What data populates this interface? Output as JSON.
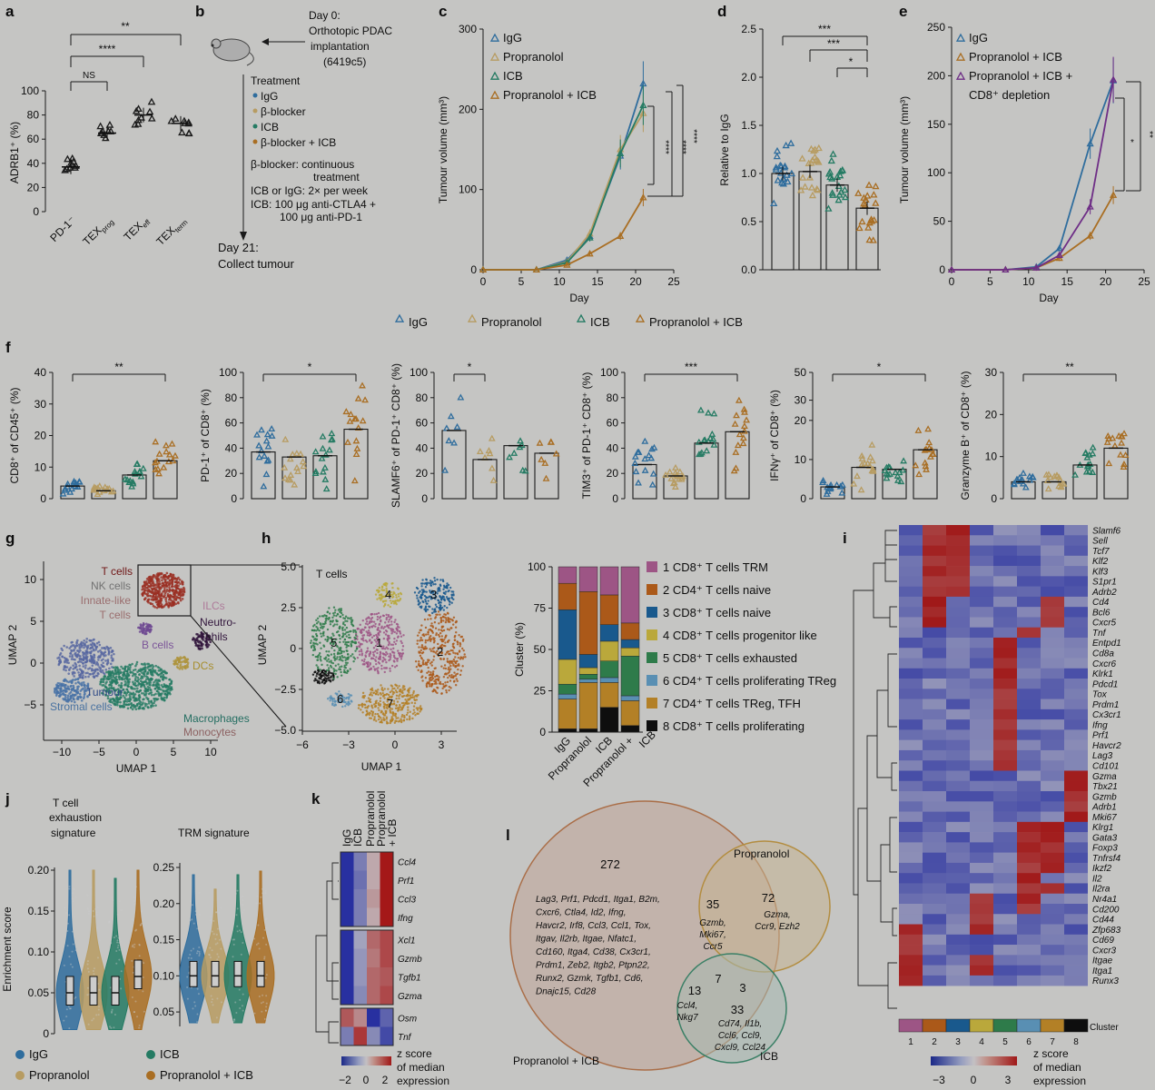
{
  "panel_labels": [
    "a",
    "b",
    "c",
    "d",
    "e",
    "f",
    "g",
    "h",
    "i",
    "j",
    "k",
    "l"
  ],
  "colors": {
    "igg": "#3b88c4",
    "propranolol": "#e5c37a",
    "icb": "#2e9a7c",
    "combo": "#d38a2c",
    "trm": "#c46aa6",
    "cd4naive": "#d66f1f",
    "cd8naive": "#1f6fb0",
    "prog": "#e8d24a",
    "exh": "#3a9a5c",
    "treg": "#6fb3e0",
    "tfh": "#e0a02f",
    "prolif": "#111111"
  },
  "panel_a": {
    "ylabel": "ADRB1⁺ (%)",
    "yticks": [
      "0",
      "20",
      "40",
      "60",
      "80",
      "100"
    ],
    "categories": [
      "PD-1⁻",
      "TEXprog",
      "TEXeff",
      "TEXterm"
    ],
    "sig": [
      "NS",
      "****",
      "**"
    ]
  },
  "panel_b": {
    "day0": "Day 0:",
    "day0_l2": "Orthotopic PDAC",
    "day0_l3": "implantation",
    "day0_l4": "(6419c5)",
    "treat_title": "Treatment",
    "treat_items": [
      "IgG",
      "β-blocker",
      "ICB",
      "β-blocker + ICB"
    ],
    "n1": "β-blocker: continuous",
    "n1b": "treatment",
    "n2": "ICB or IgG: 2× per week",
    "n3": "ICB: 100 μg anti-CTLA4 +",
    "n3b": "100 μg anti-PD-1",
    "day21": "Day 21:",
    "day21b": "Collect tumour"
  },
  "chart_data": [
    {
      "panel": "c",
      "type": "line",
      "xlabel": "Day",
      "ylabel": "Tumour volume (mm³)",
      "xlim": [
        0,
        25
      ],
      "ylim": [
        0,
        300
      ],
      "x": [
        0,
        7,
        11,
        14,
        18,
        21
      ],
      "series": [
        {
          "name": "IgG",
          "values": [
            0,
            0,
            12,
            42,
            142,
            232
          ]
        },
        {
          "name": "Propranolol",
          "values": [
            0,
            0,
            10,
            45,
            150,
            195
          ]
        },
        {
          "name": "ICB",
          "values": [
            0,
            0,
            9,
            40,
            145,
            205
          ]
        },
        {
          "name": "Propranolol + ICB",
          "values": [
            0,
            0,
            6,
            20,
            42,
            90
          ]
        }
      ],
      "annotations": [
        "****",
        "****",
        "****"
      ]
    },
    {
      "panel": "d",
      "type": "bar",
      "ylabel": "Relative to IgG",
      "ylim": [
        0,
        2.5
      ],
      "categories": [
        "IgG",
        "Propranolol",
        "ICB",
        "Propranolol + ICB"
      ],
      "values": [
        1.0,
        1.02,
        0.88,
        0.64
      ],
      "annotations": [
        "***",
        "***",
        "*"
      ]
    },
    {
      "panel": "e",
      "type": "line",
      "xlabel": "Day",
      "ylabel": "Tumour volume (mm³)",
      "xlim": [
        0,
        25
      ],
      "ylim": [
        0,
        250
      ],
      "x": [
        0,
        7,
        11,
        14,
        18,
        21
      ],
      "series": [
        {
          "name": "IgG",
          "values": [
            0,
            0,
            3,
            22,
            130,
            195
          ]
        },
        {
          "name": "Propranolol + ICB",
          "values": [
            0,
            0,
            2,
            12,
            35,
            77
          ]
        },
        {
          "name": "Propranolol + ICB + CD8⁺ depletion",
          "values": [
            0,
            0,
            2,
            15,
            65,
            196
          ]
        }
      ],
      "annotations": [
        "*",
        "**"
      ]
    },
    {
      "panel": "f1",
      "type": "bar",
      "ylabel": "CD8⁺ of CD45⁺ (%)",
      "ylim": [
        0,
        40
      ],
      "values": [
        4,
        2.5,
        7.5,
        12
      ],
      "sig": "**"
    },
    {
      "panel": "f2",
      "type": "bar",
      "ylabel": "PD-1⁺ of CD8⁺ (%)",
      "ylim": [
        0,
        100
      ],
      "values": [
        37,
        33,
        34,
        55
      ],
      "sig": "*"
    },
    {
      "panel": "f3",
      "type": "bar",
      "ylabel": "SLAMF6⁺ of PD-1⁺ CD8⁺ (%)",
      "ylim": [
        0,
        100
      ],
      "values": [
        54,
        31,
        42,
        36
      ],
      "sig": "*"
    },
    {
      "panel": "f4",
      "type": "bar",
      "ylabel": "TIM3⁺ of PD-1⁺ CD8⁺ (%)",
      "ylim": [
        0,
        100
      ],
      "values": [
        27,
        18,
        44,
        53
      ],
      "sig": "***"
    },
    {
      "panel": "f5",
      "type": "bar",
      "ylabel": "IFNγ⁺ of CD8⁺ (%)",
      "ylim": [
        0,
        50
      ],
      "values": [
        3,
        8,
        7.5,
        12.5
      ],
      "sig": "*"
    },
    {
      "panel": "f6",
      "type": "bar",
      "ylabel": "Granzyme B⁺ of CD8⁺ (%)",
      "ylim": [
        0,
        30
      ],
      "values": [
        4,
        4,
        8,
        12
      ],
      "sig": "**"
    },
    {
      "panel": "h-right",
      "type": "bar",
      "ylabel": "Cluster (%)",
      "ylim": [
        0,
        100
      ],
      "categories": [
        "IgG",
        "Propranolol",
        "ICB",
        "Propranolol + ICB"
      ],
      "series": [
        {
          "name": "8 CD8⁺ T cells proliferating",
          "values": [
            2,
            2,
            15,
            4
          ]
        },
        {
          "name": "7 CD4⁺ T cells TReg, TFH",
          "values": [
            18,
            28,
            15,
            15
          ]
        },
        {
          "name": "6 CD4⁺ T cells proliferating TReg",
          "values": [
            3,
            2,
            3,
            3
          ]
        },
        {
          "name": "5 CD8⁺ T cells exhausted",
          "values": [
            6,
            3,
            10,
            24
          ]
        },
        {
          "name": "4 CD8⁺ T cells progenitor like",
          "values": [
            15,
            4,
            12,
            5
          ]
        },
        {
          "name": "3 CD8⁺ T cells naive",
          "values": [
            30,
            8,
            10,
            5
          ]
        },
        {
          "name": "2 CD4⁺ T cells naive",
          "values": [
            16,
            38,
            18,
            10
          ]
        },
        {
          "name": "1 CD8⁺ T cells TRM",
          "values": [
            10,
            15,
            17,
            34
          ]
        }
      ]
    },
    {
      "panel": "j",
      "type": "violin",
      "ylabel": "Enrichment score",
      "groups": [
        "IgG",
        "Propranolol",
        "ICB",
        "Propranolol + ICB"
      ]
    }
  ],
  "legend_row": [
    "IgG",
    "Propranolol",
    "ICB",
    "Propranolol + ICB"
  ],
  "panel_g": {
    "xlabel": "UMAP 1",
    "ylabel": "UMAP 2",
    "xticks": [
      "−10",
      "−5",
      "0",
      "5",
      "10"
    ],
    "yticks": [
      "10",
      "5",
      "0",
      "−5"
    ],
    "labels": [
      "T cells",
      "NK cells",
      "Innate-like",
      "T cells",
      "ILCs",
      "Neutro-",
      "phils",
      "B cells",
      "DCs",
      "Tumour",
      "Stromal cells",
      "Macrophages",
      "Monocytes"
    ]
  },
  "panel_h": {
    "title": "T cells",
    "xlabel": "UMAP 1",
    "ylabel": "UMAP 2",
    "xticks": [
      "−6",
      "−3",
      "0",
      "3"
    ],
    "yticks": [
      "5.0",
      "2.5",
      "0",
      "−2.5",
      "−5.0"
    ],
    "cluster_ids": [
      "1",
      "2",
      "3",
      "4",
      "5",
      "6",
      "7",
      "8"
    ],
    "bar_yticks": [
      "0",
      "25",
      "50",
      "75",
      "100"
    ],
    "legend": [
      "1 CD8⁺ T cells TRM",
      "2 CD4⁺ T cells naive",
      "3 CD8⁺ T cells naive",
      "4 CD8⁺ T cells progenitor like",
      "5 CD8⁺ T cells exhausted",
      "6 CD4⁺ T cells proliferating TReg",
      "7 CD4⁺ T cells TReg, TFH",
      "8 CD8⁺ T cells proliferating"
    ]
  },
  "panel_i": {
    "genes": [
      "Slamf6",
      "Sell",
      "Tcf7",
      "Klf2",
      "Klf3",
      "S1pr1",
      "Adrb2",
      "Cd4",
      "Bcl6",
      "Cxcr5",
      "Tnf",
      "Entpd1",
      "Cd8a",
      "Cxcr6",
      "Klrk1",
      "Pdcd1",
      "Tox",
      "Prdm1",
      "Cx3cr1",
      "Ifng",
      "Prf1",
      "Havcr2",
      "Lag3",
      "Cd101",
      "Gzma",
      "Tbx21",
      "Gzmb",
      "Adrb1",
      "Mki67",
      "Klrg1",
      "Gata3",
      "Foxp3",
      "Tnfrsf4",
      "Ikzf2",
      "Il2",
      "Il2ra",
      "Nr4a1",
      "Cd200",
      "Cd44",
      "Zfp683",
      "Cd69",
      "Cxcr3",
      "Itgae",
      "Itga1",
      "Runx3"
    ],
    "clusters": [
      "1",
      "2",
      "3",
      "4",
      "5",
      "6",
      "7",
      "8"
    ],
    "cluster_label": "Cluster",
    "scale_title": "z score",
    "scale_sub": "of median",
    "scale_sub2": "expression",
    "scale_ticks": [
      "−3",
      "0",
      "3"
    ]
  },
  "panel_j": {
    "title1": "T cell",
    "title1b": "exhaustion",
    "title1c": "signature",
    "title2": "TRM signature",
    "yticks1": [
      "0",
      "0.05",
      "0.10",
      "0.15",
      "0.20"
    ],
    "yticks2": [
      "0.05",
      "0.10",
      "0.15",
      "0.20",
      "0.25"
    ],
    "legend": [
      "IgG",
      "ICB",
      "Propranolol",
      "Propranolol + ICB"
    ]
  },
  "panel_k": {
    "columns": [
      "IgG",
      "ICB",
      "Propranolol",
      "Propranolol + ICB"
    ],
    "genes": [
      "Ccl4",
      "Prf1",
      "Ccl3",
      "Ifng",
      "Xcl1",
      "Gzmb",
      "Tgfb1",
      "Gzma",
      "Osm",
      "Tnf"
    ],
    "scale_title": "z score",
    "scale_sub": "of median",
    "scale_sub2": "expression",
    "scale_ticks": [
      "−2",
      "0",
      "2"
    ]
  },
  "panel_l": {
    "sets": [
      "Propranolol + ICB",
      "Propranolol",
      "ICB"
    ],
    "counts": {
      "combo_only": "272",
      "combo_prop": "35",
      "prop_only": "72",
      "combo_icb": "13",
      "all": "7",
      "prop_icb": "3",
      "icb_only": "33"
    },
    "combo_genes": [
      "Lag3, Prf1, Pdcd1, Itga1, B2m,",
      "Cxcr6, Ctla4, Id2, Ifng,",
      "Havcr2, Irf8, Ccl3, Ccl1, Tox,",
      "Itgav, Il2rb, Itgae, Nfatc1,",
      "Cd160, Itga4, Cd38, Cx3cr1,",
      "Prdm1, Zeb2, Itgb2, Ptpn22,",
      "Runx2, Gzmk, Tgfb1, Cd6,",
      "Dnajc15, Cd28"
    ],
    "combo_prop_genes": [
      "Gzmb,",
      "Mki67,",
      "Ccr5"
    ],
    "prop_genes": [
      "Gzma,",
      "Ccr9, Ezh2"
    ],
    "combo_icb_genes": [
      "Ccl4,",
      "Nkg7"
    ],
    "icb_genes": [
      "Cd74, Il1b,",
      "Ccl6, Ccl9,",
      "Cxcl9, Ccl24"
    ]
  }
}
